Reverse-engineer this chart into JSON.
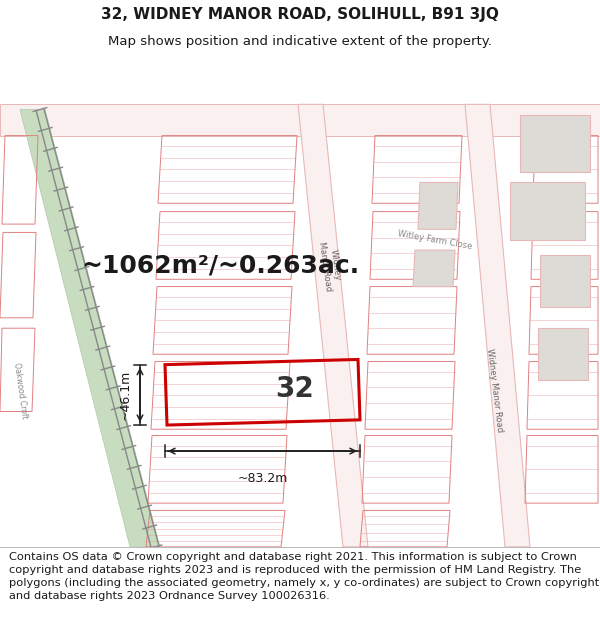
{
  "title_line1": "32, WIDNEY MANOR ROAD, SOLIHULL, B91 3JQ",
  "title_line2": "Map shows position and indicative extent of the property.",
  "area_text": "~1062m²/~0.263ac.",
  "label_32": "32",
  "dim_width": "~83.2m",
  "dim_height": "~46.1m",
  "footer_text": "Contains OS data © Crown copyright and database right 2021. This information is subject to Crown copyright and database rights 2023 and is reproduced with the permission of HM Land Registry. The polygons (including the associated geometry, namely x, y co-ordinates) are subject to Crown copyright and database rights 2023 Ordnance Survey 100026316.",
  "map_bg": "#f2ede8",
  "road_color": "#e8b8b8",
  "road_fill": "#faf0f0",
  "highlight_color": "#cc0000",
  "building_fill": "#dedad5",
  "building_edge": "#e8b8b8",
  "green_fill": "#c8ddc0",
  "grey_fill": "#d8d4d0",
  "title_fontsize": 11,
  "subtitle_fontsize": 9.5,
  "area_fontsize": 18,
  "label_fontsize": 20,
  "dim_fontsize": 9,
  "footer_fontsize": 8.2,
  "prop_line_color": "#e08080",
  "hatch_color": "#e8a0a0",
  "railway_color": "#888888"
}
